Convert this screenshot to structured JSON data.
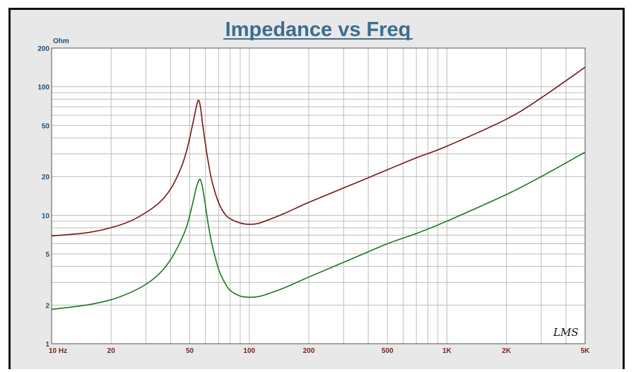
{
  "chart_data": {
    "type": "line",
    "title": "Impedance vs Freq",
    "ylabel": "Ohm",
    "xlabel": "",
    "x_scale": "log",
    "y_scale": "log",
    "xlim": [
      10,
      5000
    ],
    "ylim": [
      1,
      200
    ],
    "x_ticks": [
      {
        "value": 10,
        "label": "10  Hz"
      },
      {
        "value": 20,
        "label": "20"
      },
      {
        "value": 50,
        "label": "50"
      },
      {
        "value": 100,
        "label": "100"
      },
      {
        "value": 200,
        "label": "200"
      },
      {
        "value": 500,
        "label": "500"
      },
      {
        "value": 1000,
        "label": "1K"
      },
      {
        "value": 2000,
        "label": "2K"
      },
      {
        "value": 5000,
        "label": "5K"
      }
    ],
    "y_ticks": [
      {
        "value": 200,
        "label": "200"
      },
      {
        "value": 100,
        "label": "100"
      },
      {
        "value": 50,
        "label": "50"
      },
      {
        "value": 20,
        "label": "20"
      },
      {
        "value": 10,
        "label": "10"
      },
      {
        "value": 5,
        "label": "5"
      },
      {
        "value": 2,
        "label": "2"
      },
      {
        "value": 1,
        "label": "1"
      }
    ],
    "grid": true,
    "logo_text": "LMS",
    "series": [
      {
        "color": "#7a1515",
        "x": [
          10,
          15,
          20,
          25,
          30,
          35,
          40,
          45,
          48,
          50,
          52,
          54,
          55,
          56,
          57,
          58,
          60,
          62,
          65,
          70,
          75,
          80,
          90,
          100,
          110,
          120,
          150,
          200,
          300,
          500,
          700,
          1000,
          2000,
          3000,
          5000
        ],
        "y": [
          6.9,
          7.3,
          8.0,
          9.0,
          10.5,
          12.5,
          16.0,
          23.0,
          31.0,
          40.0,
          53.0,
          70.0,
          78.0,
          76.0,
          65.0,
          52.0,
          36.0,
          26.0,
          18.0,
          12.5,
          10.3,
          9.4,
          8.7,
          8.5,
          8.6,
          9.0,
          10.3,
          12.6,
          16.3,
          22.6,
          28.0,
          34.5,
          56.0,
          82.0,
          142.0
        ]
      },
      {
        "color": "#1a7a1a",
        "x": [
          10,
          15,
          20,
          25,
          30,
          35,
          40,
          45,
          48,
          50,
          52,
          54,
          56,
          57,
          58,
          60,
          62,
          65,
          70,
          75,
          80,
          90,
          100,
          110,
          120,
          150,
          200,
          300,
          500,
          700,
          1000,
          2000,
          3000,
          5000
        ],
        "y": [
          1.85,
          2.0,
          2.2,
          2.5,
          2.9,
          3.5,
          4.5,
          6.3,
          8.0,
          10.0,
          12.8,
          16.5,
          19.0,
          18.4,
          16.5,
          12.0,
          8.5,
          5.8,
          3.8,
          3.0,
          2.6,
          2.35,
          2.3,
          2.32,
          2.4,
          2.72,
          3.3,
          4.3,
          6.0,
          7.2,
          9.0,
          14.5,
          20.0,
          31.0
        ]
      }
    ]
  }
}
